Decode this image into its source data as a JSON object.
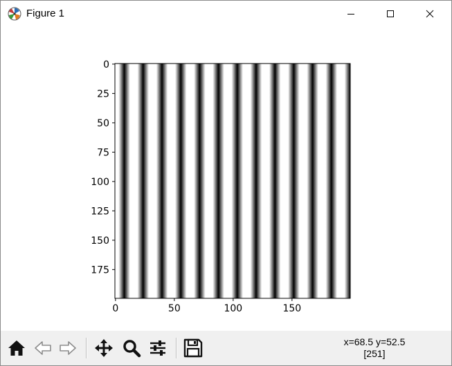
{
  "window": {
    "title": "Figure 1"
  },
  "window_controls": {
    "minimize_icon": "minimize-icon",
    "maximize_icon": "maximize-icon",
    "close_icon": "close-icon"
  },
  "toolbar": {
    "buttons": [
      {
        "name": "home-button",
        "icon": "home-icon"
      },
      {
        "name": "back-button",
        "icon": "arrow-left-icon"
      },
      {
        "name": "forward-button",
        "icon": "arrow-right-icon"
      },
      {
        "name": "pan-button",
        "icon": "move-icon"
      },
      {
        "name": "zoom-button",
        "icon": "magnifier-icon"
      },
      {
        "name": "configure-subplots-button",
        "icon": "sliders-icon"
      },
      {
        "name": "save-button",
        "icon": "floppy-disk-icon"
      }
    ]
  },
  "status": {
    "coords": "x=68.5 y=52.5",
    "value": "[251]"
  },
  "chart_data": {
    "type": "heatmap",
    "description_of_values": "grayscale image, intensity varies only along x as a sinusoid; constant along y",
    "colormap": "gray",
    "image_width": 200,
    "image_height": 200,
    "stripe_period": 16,
    "stripe_count": 12.5,
    "x_ticks": [
      0,
      50,
      100,
      150
    ],
    "y_ticks": [
      0,
      25,
      50,
      75,
      100,
      125,
      150,
      175
    ],
    "xlim": [
      -0.5,
      199.5
    ],
    "ylim": [
      199.5,
      -0.5
    ],
    "title": "",
    "xlabel": "",
    "ylabel": ""
  }
}
